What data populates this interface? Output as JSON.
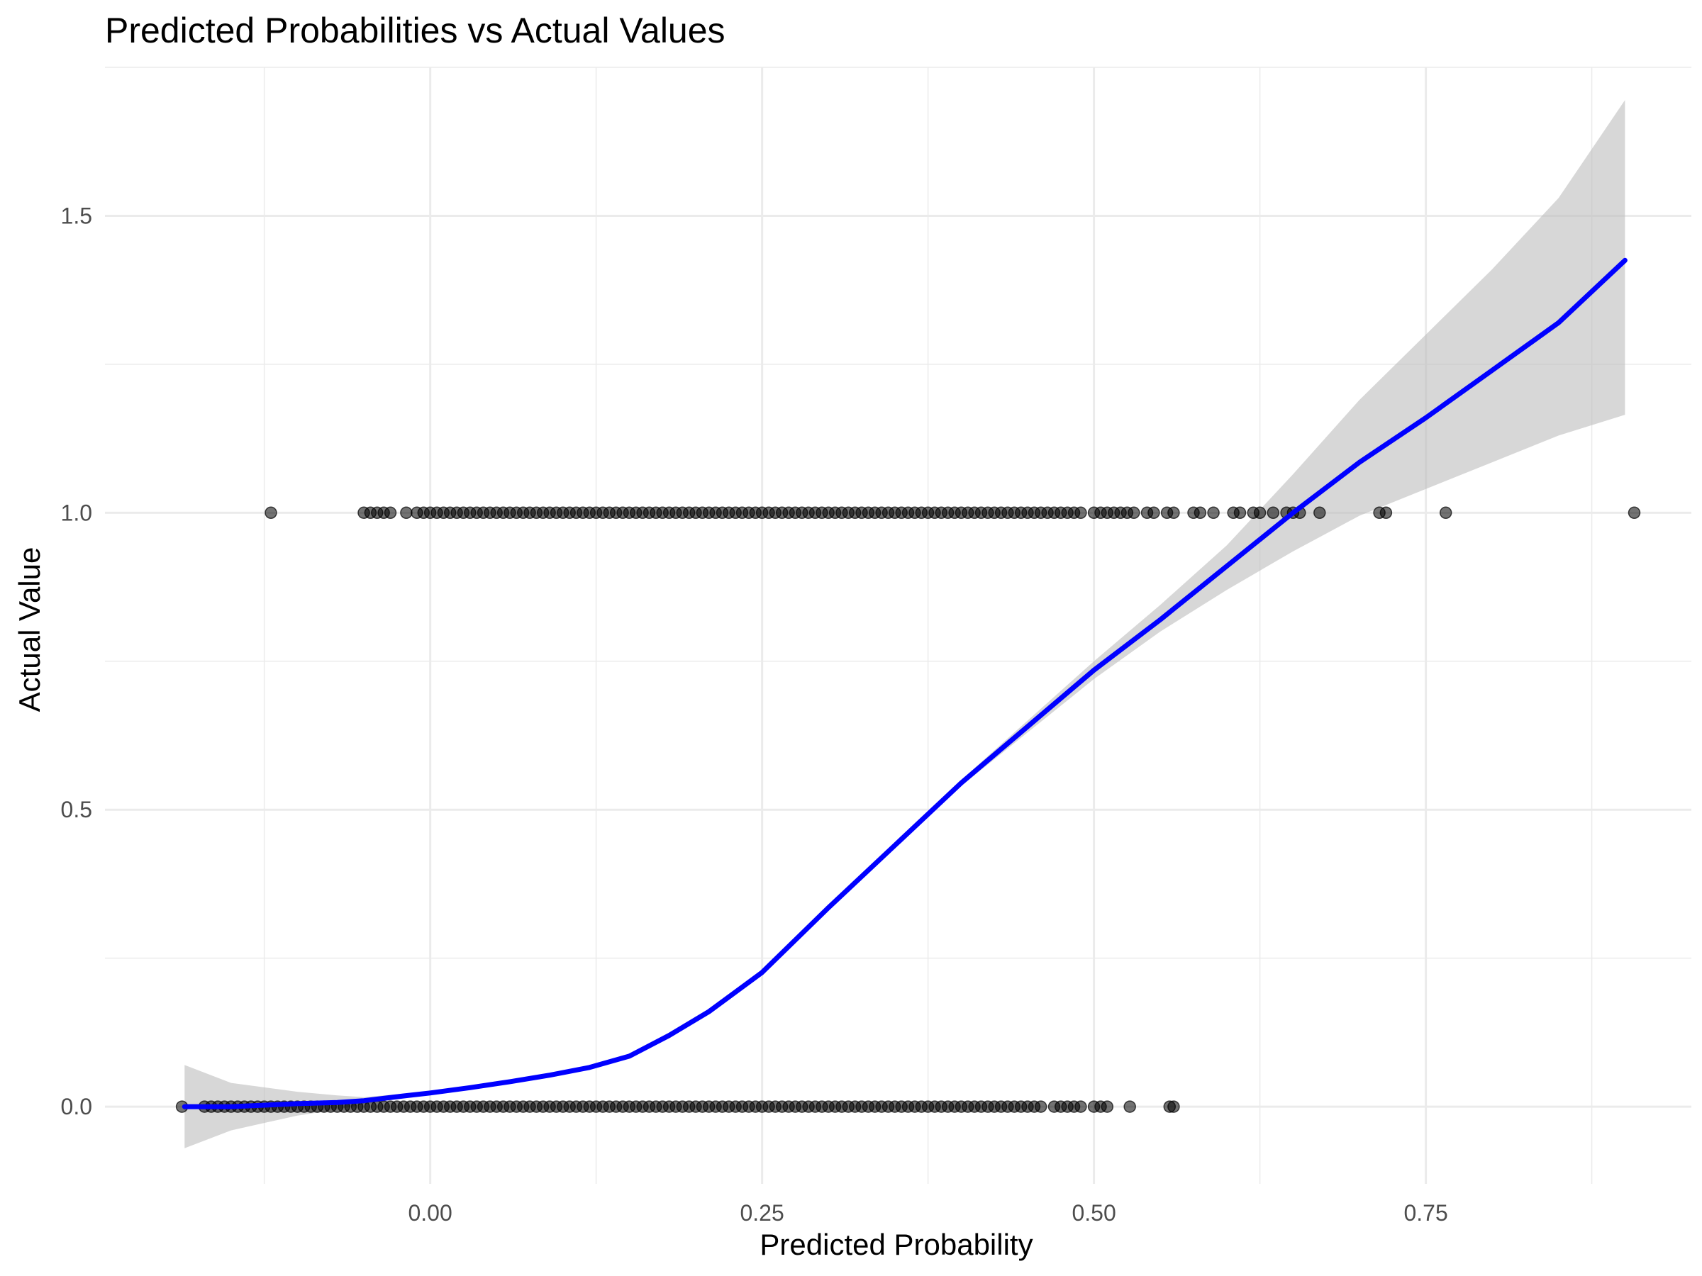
{
  "chart_data": {
    "type": "scatter",
    "title": "Predicted Probabilities vs Actual Values",
    "xlabel": "Predicted Probability",
    "ylabel": "Actual Value",
    "xlim": [
      -0.245,
      0.95
    ],
    "ylim": [
      -0.13,
      1.75
    ],
    "x_ticks": [
      0.0,
      0.25,
      0.5,
      0.75
    ],
    "x_tick_labels": [
      "0.00",
      "0.25",
      "0.50",
      "0.75"
    ],
    "y_ticks": [
      0.0,
      0.5,
      1.0,
      1.5
    ],
    "y_tick_labels": [
      "0.0",
      "0.5",
      "1.0",
      "1.5"
    ],
    "grid": true,
    "colors": {
      "points": "#000000",
      "smooth_line": "#0000ff",
      "confidence_band": "#bdbdbd",
      "grid": "#ebebeb"
    },
    "series": [
      {
        "kind": "points",
        "y": 1,
        "x_values": [
          -0.12,
          -0.05,
          -0.045,
          -0.04,
          -0.035,
          -0.03,
          -0.018,
          -0.01,
          -0.005,
          0.0,
          0.005,
          0.01,
          0.015,
          0.02,
          0.025,
          0.03,
          0.035,
          0.04,
          0.045,
          0.05,
          0.055,
          0.06,
          0.065,
          0.07,
          0.075,
          0.08,
          0.085,
          0.09,
          0.095,
          0.1,
          0.105,
          0.11,
          0.115,
          0.12,
          0.125,
          0.13,
          0.135,
          0.14,
          0.145,
          0.15,
          0.155,
          0.16,
          0.165,
          0.17,
          0.175,
          0.18,
          0.185,
          0.19,
          0.195,
          0.2,
          0.205,
          0.21,
          0.215,
          0.22,
          0.225,
          0.23,
          0.235,
          0.24,
          0.245,
          0.25,
          0.255,
          0.26,
          0.265,
          0.27,
          0.275,
          0.28,
          0.285,
          0.29,
          0.295,
          0.3,
          0.305,
          0.31,
          0.315,
          0.32,
          0.325,
          0.33,
          0.335,
          0.34,
          0.345,
          0.35,
          0.355,
          0.36,
          0.365,
          0.37,
          0.375,
          0.38,
          0.385,
          0.39,
          0.395,
          0.4,
          0.405,
          0.41,
          0.415,
          0.42,
          0.425,
          0.43,
          0.435,
          0.44,
          0.445,
          0.45,
          0.455,
          0.46,
          0.465,
          0.47,
          0.475,
          0.48,
          0.485,
          0.49,
          0.5,
          0.505,
          0.51,
          0.515,
          0.52,
          0.525,
          0.53,
          0.54,
          0.545,
          0.555,
          0.56,
          0.575,
          0.58,
          0.59,
          0.605,
          0.61,
          0.62,
          0.625,
          0.635,
          0.645,
          0.65,
          0.655,
          0.67,
          0.715,
          0.72,
          0.765,
          0.907
        ]
      },
      {
        "kind": "points",
        "y": 0,
        "x_values": [
          -0.187,
          -0.17,
          -0.165,
          -0.16,
          -0.155,
          -0.15,
          -0.145,
          -0.14,
          -0.135,
          -0.13,
          -0.125,
          -0.12,
          -0.115,
          -0.11,
          -0.105,
          -0.1,
          -0.095,
          -0.09,
          -0.085,
          -0.08,
          -0.075,
          -0.07,
          -0.065,
          -0.06,
          -0.055,
          -0.05,
          -0.045,
          -0.04,
          -0.035,
          -0.03,
          -0.025,
          -0.02,
          -0.015,
          -0.01,
          -0.005,
          0.0,
          0.005,
          0.01,
          0.015,
          0.02,
          0.025,
          0.03,
          0.035,
          0.04,
          0.045,
          0.05,
          0.055,
          0.06,
          0.065,
          0.07,
          0.075,
          0.08,
          0.085,
          0.09,
          0.095,
          0.1,
          0.105,
          0.11,
          0.115,
          0.12,
          0.125,
          0.13,
          0.135,
          0.14,
          0.145,
          0.15,
          0.155,
          0.16,
          0.165,
          0.17,
          0.175,
          0.18,
          0.185,
          0.19,
          0.195,
          0.2,
          0.205,
          0.21,
          0.215,
          0.22,
          0.225,
          0.23,
          0.235,
          0.24,
          0.245,
          0.25,
          0.255,
          0.26,
          0.265,
          0.27,
          0.275,
          0.28,
          0.285,
          0.29,
          0.295,
          0.3,
          0.305,
          0.31,
          0.315,
          0.32,
          0.325,
          0.33,
          0.335,
          0.34,
          0.345,
          0.35,
          0.355,
          0.36,
          0.365,
          0.37,
          0.375,
          0.38,
          0.385,
          0.39,
          0.395,
          0.4,
          0.405,
          0.41,
          0.415,
          0.42,
          0.425,
          0.43,
          0.435,
          0.44,
          0.445,
          0.45,
          0.455,
          0.46,
          0.47,
          0.475,
          0.48,
          0.485,
          0.49,
          0.5,
          0.505,
          0.51,
          0.527,
          0.557,
          0.56
        ]
      },
      {
        "kind": "smooth",
        "name": "",
        "x": [
          -0.185,
          -0.15,
          -0.1,
          -0.07,
          -0.05,
          -0.02,
          0.0,
          0.03,
          0.06,
          0.09,
          0.12,
          0.15,
          0.18,
          0.21,
          0.25,
          0.3,
          0.35,
          0.4,
          0.45,
          0.5,
          0.55,
          0.6,
          0.65,
          0.7,
          0.75,
          0.8,
          0.85,
          0.9
        ],
        "y": [
          0.0,
          0.0,
          0.005,
          0.007,
          0.01,
          0.018,
          0.023,
          0.032,
          0.042,
          0.053,
          0.066,
          0.085,
          0.12,
          0.16,
          0.226,
          0.335,
          0.44,
          0.545,
          0.64,
          0.735,
          0.82,
          0.91,
          1.0,
          1.085,
          1.16,
          1.24,
          1.32,
          1.425
        ]
      },
      {
        "kind": "confidence_band",
        "x": [
          -0.185,
          -0.15,
          -0.1,
          -0.07,
          -0.05,
          -0.02,
          0.0,
          0.03,
          0.06,
          0.09,
          0.12,
          0.15,
          0.18,
          0.21,
          0.25,
          0.3,
          0.35,
          0.4,
          0.45,
          0.5,
          0.55,
          0.6,
          0.65,
          0.7,
          0.75,
          0.8,
          0.85,
          0.9
        ],
        "ymin": [
          -0.07,
          -0.04,
          -0.015,
          -0.005,
          0.004,
          0.014,
          0.02,
          0.029,
          0.039,
          0.05,
          0.063,
          0.081,
          0.115,
          0.155,
          0.221,
          0.33,
          0.435,
          0.54,
          0.63,
          0.72,
          0.8,
          0.87,
          0.935,
          0.995,
          1.04,
          1.085,
          1.13,
          1.165
        ],
        "ymax": [
          0.07,
          0.04,
          0.025,
          0.019,
          0.016,
          0.022,
          0.026,
          0.035,
          0.045,
          0.056,
          0.069,
          0.089,
          0.125,
          0.165,
          0.231,
          0.34,
          0.445,
          0.55,
          0.65,
          0.75,
          0.845,
          0.945,
          1.065,
          1.19,
          1.3,
          1.41,
          1.53,
          1.695
        ]
      }
    ]
  }
}
